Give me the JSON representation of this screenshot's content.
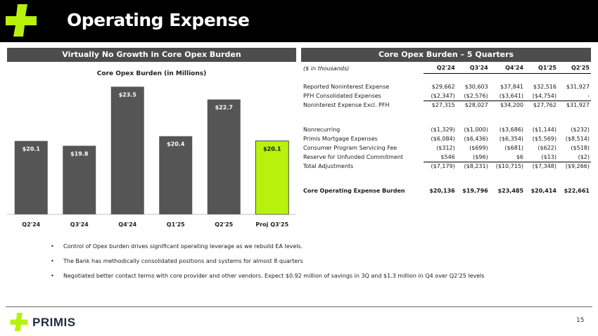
{
  "header": {
    "title": "Operating Expense"
  },
  "left_panel": {
    "title": "Virtually No Growth in Core Opex Burden"
  },
  "right_panel": {
    "title": "Core Opex Burden – 5 Quarters"
  },
  "colors": {
    "accent_green": "#b8f20c",
    "bar_gray": "#555555",
    "header_bg": "#000000",
    "panel_header_bg": "#4d4d4d"
  },
  "chart_data": {
    "type": "bar",
    "title": "Core Opex Burden (in Millions)",
    "categories": [
      "Q2'24",
      "Q3'24",
      "Q4'24",
      "Q1'25",
      "Q2'25",
      "Proj Q3'25"
    ],
    "values": [
      20.1,
      19.8,
      23.5,
      20.4,
      22.7,
      20.1
    ],
    "labels": [
      "$20.1",
      "$19.8",
      "$23.5",
      "$20.4",
      "$22.7",
      "$20.1"
    ],
    "highlight_index": 5,
    "ylim": [
      15.5,
      24
    ],
    "xlabel": "",
    "ylabel": ""
  },
  "table": {
    "units": "($ in thousands)",
    "columns": [
      "Q2'24",
      "Q3'24",
      "Q4'24",
      "Q1'25",
      "Q2'25"
    ],
    "groups": [
      {
        "rows": [
          {
            "label": "Reported Noninterest Expense",
            "values": [
              "$29,662",
              "$30,603",
              "$37,841",
              "$32,516",
              "$31,927"
            ]
          },
          {
            "label": "PFH Consolidated Expenses",
            "values": [
              "($2,347)",
              "($2,576)",
              "($3,641)",
              "($4,754)",
              "-"
            ]
          },
          {
            "label": "Noninterest Expense Excl. PFH",
            "values": [
              "$27,315",
              "$28,027",
              "$34,200",
              "$27,762",
              "$31,927"
            ]
          }
        ]
      },
      {
        "rows": [
          {
            "label": "Nonrecurring",
            "values": [
              "($1,329)",
              "($1,000)",
              "($3,686)",
              "($1,144)",
              "($232)"
            ]
          },
          {
            "label": "Primis Mortgage Expenses",
            "values": [
              "($6,084)",
              "($6,436)",
              "($6,354)",
              "($5,569)",
              "($8,514)"
            ]
          },
          {
            "label": "Consumer Program Servicing Fee",
            "values": [
              "($312)",
              "($699)",
              "($681)",
              "($622)",
              "($518)"
            ]
          },
          {
            "label": "Reserve for Unfunded Commitment",
            "values": [
              "$546",
              "($96)",
              "$6",
              "($13)",
              "($2)"
            ]
          },
          {
            "label": "Total Adjustments",
            "values": [
              "($7,179)",
              "($8,231)",
              "($10,715)",
              "($7,348)",
              "($9,266)"
            ]
          }
        ]
      },
      {
        "rows": [
          {
            "label": "Core Operating Expense Burden",
            "values": [
              "$20,136",
              "$19,796",
              "$23,485",
              "$20,414",
              "$22,661"
            ]
          }
        ]
      }
    ]
  },
  "bullets": [
    "Control of Opex burden drives significant operating leverage as we rebuild EA levels.",
    "The Bank has methodically consolidated positions and systems for almost 8 quarters",
    "Negotiated better contact terms with core provider and other vendors.  Expect $0.92 million of savings in 3Q and $1.3 million in Q4 over Q2’25 levels"
  ],
  "footer": {
    "brand": "PRIMIS",
    "page_number": "15"
  }
}
